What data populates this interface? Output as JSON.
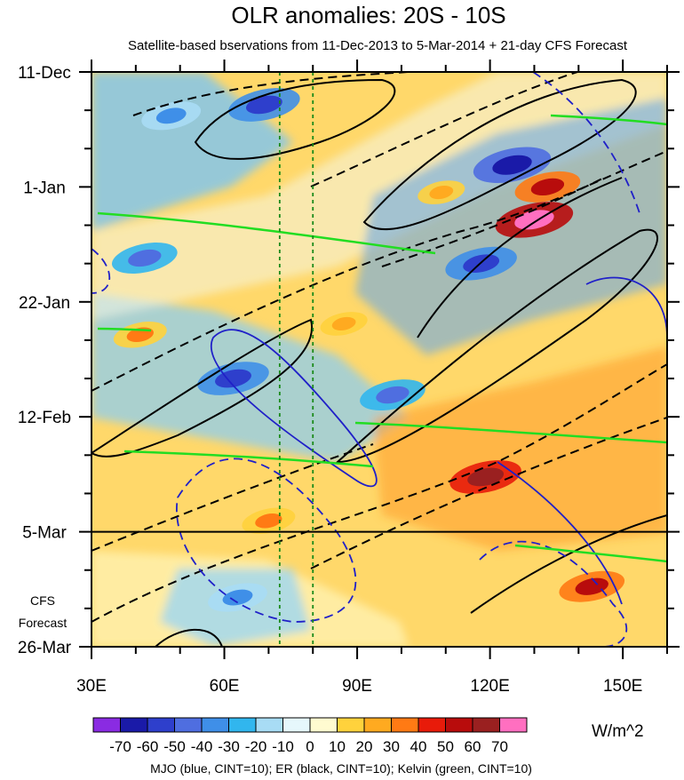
{
  "chart_data": {
    "type": "heatmap",
    "title": "OLR anomalies: 20S - 10S",
    "subtitle": "Satellite-based bservations from 11-Dec-2013 to 5-Mar-2014 + 21-day CFS Forecast",
    "x_axis": {
      "range": [
        30,
        160
      ],
      "ticks": [
        30,
        60,
        90,
        120,
        150
      ],
      "tick_labels": [
        "30E",
        "60E",
        "90E",
        "120E",
        "150E"
      ]
    },
    "y_axis": {
      "range_days": [
        0,
        105
      ],
      "ticks": [
        0,
        21,
        42,
        63,
        84,
        105
      ],
      "tick_labels": [
        "11-Dec",
        "1-Jan",
        "22-Jan",
        "12-Feb",
        "5-Mar",
        "26-Mar"
      ]
    },
    "forecast": {
      "start_day": 84,
      "label_line1": "CFS",
      "label_line2": "Forecast"
    },
    "reference_lines_lon": [
      72.5,
      80
    ],
    "colorbar": {
      "levels": [
        -70,
        -60,
        -50,
        -40,
        -30,
        -20,
        -10,
        0,
        10,
        20,
        30,
        40,
        50,
        60,
        70
      ],
      "labels": [
        "-70",
        "-60",
        "-50",
        "-40",
        "-30",
        "-20",
        "-10",
        "0",
        "10",
        "20",
        "30",
        "40",
        "50",
        "60",
        "70"
      ],
      "colors": [
        "#8a2be2",
        "#1a1aa8",
        "#2e3fcc",
        "#4f6ee0",
        "#3f8fe8",
        "#31b6ee",
        "#a8dcf5",
        "#e6f7fc",
        "#fffbd0",
        "#ffd23c",
        "#ffaa20",
        "#ff7a14",
        "#e81b0a",
        "#b80c0c",
        "#9a2020",
        "#ff6fc0"
      ],
      "units": "W/m^2"
    },
    "anomaly_features": [
      {
        "lon": 48,
        "day": 8,
        "value": -40
      },
      {
        "lon": 69,
        "day": 6,
        "value": -60
      },
      {
        "lon": 125,
        "day": 17,
        "value": -70
      },
      {
        "lon": 133,
        "day": 21,
        "value": 50
      },
      {
        "lon": 130,
        "day": 27,
        "value": 70
      },
      {
        "lon": 42,
        "day": 34,
        "value": -50
      },
      {
        "lon": 118,
        "day": 35,
        "value": -60
      },
      {
        "lon": 62,
        "day": 56,
        "value": -60
      },
      {
        "lon": 98,
        "day": 59,
        "value": -50
      },
      {
        "lon": 119,
        "day": 74,
        "value": 60
      },
      {
        "lon": 143,
        "day": 94,
        "value": 50
      },
      {
        "lon": 63,
        "day": 96,
        "value": -40
      },
      {
        "lon": 41,
        "day": 48,
        "value": 30
      },
      {
        "lon": 87,
        "day": 46,
        "value": 20
      },
      {
        "lon": 70,
        "day": 82,
        "value": 30
      },
      {
        "lon": 109,
        "day": 22,
        "value": 20
      }
    ],
    "contour_legend": {
      "MJO": "blue",
      "ER": "black",
      "Kelvin": "green",
      "CINT": 10
    },
    "footer_text": "MJO (blue, CINT=10); ER (black, CINT=10); Kelvin (green, CINT=10)"
  }
}
